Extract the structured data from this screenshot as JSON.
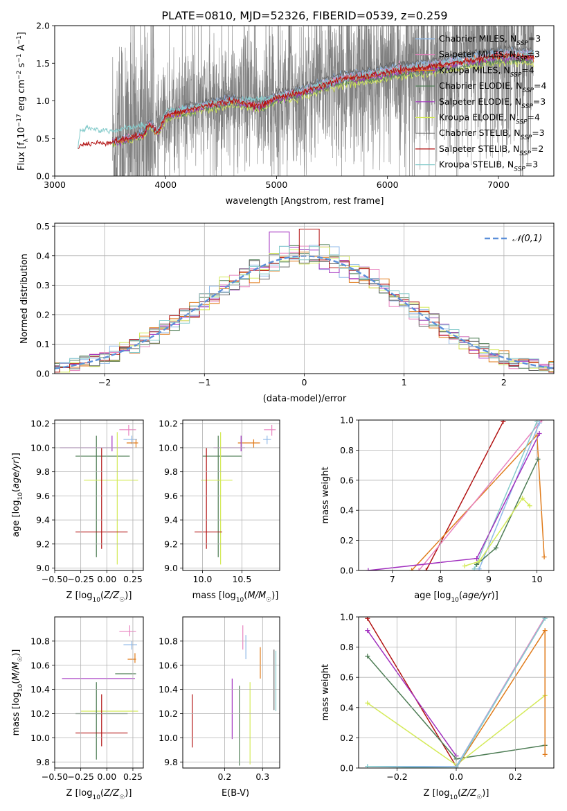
{
  "figure": {
    "title": "PLATE=0810, MJD=52326, FIBERID=0539, z=0.259"
  },
  "colors": {
    "chab_miles": "#8fb9e8",
    "salp_miles": "#e882bf",
    "krou_miles": "#e07b1a",
    "chab_elodie": "#4e7d55",
    "salp_elodie": "#a12fbf",
    "krou_elodie": "#d4ea57",
    "chab_stelib": "#666666",
    "salp_stelib": "#b21212",
    "krou_stelib": "#87cccc",
    "normal": "#5b8fd9",
    "grid": "#b0b0b0"
  },
  "chart_data": [
    {
      "id": "spectrum",
      "type": "line",
      "xlabel": "wavelength [Angstrom, rest frame]",
      "ylabel": "Flux [f_λ 10^-17 erg cm^-2 s^-1 A^-1]",
      "xlim": [
        3000,
        7500
      ],
      "ylim": [
        0.0,
        2.0
      ],
      "xticks": [
        3000,
        4000,
        5000,
        6000,
        7000
      ],
      "yticks": [
        0.0,
        0.5,
        1.0,
        1.5,
        2.0
      ],
      "grid": false,
      "legend_position": "top-right",
      "series": [
        {
          "key": "chab_miles",
          "name": "Chabrier MILES, N_SSP=3"
        },
        {
          "key": "salp_miles",
          "name": "Salpeter MILES, N_SSP=3"
        },
        {
          "key": "krou_miles",
          "name": "Kroupa MILES, N_SSP=4"
        },
        {
          "key": "chab_elodie",
          "name": "Chabrier ELODIE, N_SSP=4"
        },
        {
          "key": "salp_elodie",
          "name": "Salpeter ELODIE, N_SSP=3"
        },
        {
          "key": "krou_elodie",
          "name": "Kroupa ELODIE, N_SSP=4"
        },
        {
          "key": "chab_stelib",
          "name": "Chabrier STELIB, N_SSP=3"
        },
        {
          "key": "salp_stelib",
          "name": "Salpeter STELIB, N_SSP=2"
        },
        {
          "key": "krou_stelib",
          "name": "Kroupa STELIB, N_SSP=3"
        }
      ],
      "model_curve": [
        [
          3210,
          0.4
        ],
        [
          3300,
          0.43
        ],
        [
          3500,
          0.45
        ],
        [
          3600,
          0.48
        ],
        [
          3800,
          0.55
        ],
        [
          3850,
          0.7
        ],
        [
          3930,
          0.58
        ],
        [
          4000,
          0.8
        ],
        [
          4200,
          0.88
        ],
        [
          4400,
          0.95
        ],
        [
          4600,
          1.0
        ],
        [
          4860,
          0.93
        ],
        [
          5000,
          1.05
        ],
        [
          5200,
          1.1
        ],
        [
          5400,
          1.2
        ],
        [
          5600,
          1.3
        ],
        [
          5800,
          1.32
        ],
        [
          6000,
          1.38
        ],
        [
          6200,
          1.42
        ],
        [
          6500,
          1.48
        ],
        [
          6800,
          1.55
        ],
        [
          7000,
          1.6
        ],
        [
          7200,
          1.6
        ],
        [
          7320,
          1.58
        ]
      ],
      "model_curve_blue": [
        [
          3210,
          0.35
        ],
        [
          3230,
          0.6
        ],
        [
          3300,
          0.63
        ],
        [
          3500,
          0.6
        ],
        [
          3600,
          0.62
        ],
        [
          3800,
          0.68
        ],
        [
          3930,
          0.6
        ],
        [
          4000,
          0.85
        ],
        [
          4500,
          0.98
        ],
        [
          5000,
          1.05
        ],
        [
          5500,
          1.25
        ],
        [
          6000,
          1.4
        ],
        [
          6500,
          1.5
        ],
        [
          7000,
          1.6
        ],
        [
          7320,
          1.62
        ]
      ],
      "data_range": [
        3520,
        7320
      ],
      "data_level_note": ""
    },
    {
      "id": "residuals",
      "type": "step",
      "xlabel": "(data-model)/error",
      "ylabel": "Normed distribution",
      "xlim": [
        -2.5,
        2.5
      ],
      "ylim": [
        0.0,
        0.51
      ],
      "xticks": [
        -2,
        -1,
        0,
        1,
        2
      ],
      "yticks": [
        0.0,
        0.1,
        0.2,
        0.3,
        0.4,
        0.5
      ],
      "grid": true,
      "legend_position": "top-right",
      "legend": "𝒩(0,1)",
      "bin_width": 0.1
    },
    {
      "id": "age_vs_Z",
      "type": "errorbar",
      "xlabel": "Z [log10(Z/Z☉)]",
      "ylabel": "age  [log10(age/yr)]",
      "xlim": [
        -0.5,
        0.35
      ],
      "ylim": [
        8.98,
        10.23
      ],
      "xticks": [
        -0.5,
        -0.25,
        0.0,
        0.25
      ],
      "yticks": [
        9.0,
        9.2,
        9.4,
        9.6,
        9.8,
        10.0,
        10.2
      ],
      "points": [
        {
          "key": "salp_miles",
          "x": 0.21,
          "xerr": [
            0.09,
            0.07
          ],
          "y": 10.15,
          "yerr": [
            0.05,
            0.04
          ]
        },
        {
          "key": "chab_miles",
          "x": 0.24,
          "xerr": [
            0.08,
            0.05
          ],
          "y": 10.07,
          "yerr": [
            0.04,
            0.03
          ]
        },
        {
          "key": "krou_miles",
          "x": 0.28,
          "xerr": [
            0.09,
            0.02
          ],
          "y": 10.04,
          "yerr": [
            0.04,
            0.03
          ]
        },
        {
          "key": "salp_elodie",
          "x": 0.05,
          "xerr": [
            0.5,
            0.2
          ],
          "y": 10.0,
          "yerr": [
            0.03,
            0.1
          ]
        },
        {
          "key": "chab_elodie",
          "x": -0.1,
          "xerr": [
            0.2,
            0.32
          ],
          "y": 9.93,
          "yerr": [
            0.84,
            0.17
          ]
        },
        {
          "key": "krou_elodie",
          "x": 0.1,
          "xerr": [
            0.32,
            0.2
          ],
          "y": 9.73,
          "yerr": [
            0.7,
            0.4
          ]
        },
        {
          "key": "salp_stelib",
          "x": -0.05,
          "xerr": [
            0.25,
            0.25
          ],
          "y": 9.3,
          "yerr": [
            0.14,
            0.7
          ]
        }
      ]
    },
    {
      "id": "age_vs_mass",
      "type": "errorbar",
      "xlabel": "mass [log10(M/M☉)]",
      "ylabel": "",
      "xlim": [
        9.75,
        10.98
      ],
      "ylim": [
        8.98,
        10.23
      ],
      "xticks": [
        10.0,
        10.5
      ],
      "yticks": [
        9.0,
        9.2,
        9.4,
        9.6,
        9.8,
        10.0,
        10.2
      ],
      "points": [
        {
          "key": "salp_miles",
          "x": 10.88,
          "xerr": [
            0.1,
            0.05
          ],
          "y": 10.15,
          "yerr": [
            0.05,
            0.04
          ]
        },
        {
          "key": "chab_miles",
          "x": 10.82,
          "xerr": [
            0.05,
            0.05
          ],
          "y": 10.07,
          "yerr": [
            0.04,
            0.03
          ]
        },
        {
          "key": "krou_miles",
          "x": 10.65,
          "xerr": [
            0.2,
            0.08
          ],
          "y": 10.04,
          "yerr": [
            0.04,
            0.03
          ]
        },
        {
          "key": "salp_elodie",
          "x": 10.49,
          "xerr": [
            0.35,
            0.05
          ],
          "y": 10.0,
          "yerr": [
            0.03,
            0.1
          ]
        },
        {
          "key": "chab_elodie",
          "x": 10.2,
          "xerr": [
            0.2,
            0.3
          ],
          "y": 9.93,
          "yerr": [
            0.84,
            0.17
          ]
        },
        {
          "key": "krou_elodie",
          "x": 10.23,
          "xerr": [
            0.25,
            0.15
          ],
          "y": 9.73,
          "yerr": [
            0.7,
            0.4
          ]
        },
        {
          "key": "salp_stelib",
          "x": 10.05,
          "xerr": [
            0.15,
            0.2
          ],
          "y": 9.3,
          "yerr": [
            0.14,
            0.7
          ]
        }
      ]
    },
    {
      "id": "mass_weight_vs_age",
      "type": "line",
      "xlabel": "age  [log10(age/yr)]",
      "ylabel": "mass weight",
      "xlim": [
        6.3,
        10.35
      ],
      "ylim": [
        0.0,
        1.0
      ],
      "xticks": [
        7,
        8,
        9,
        10
      ],
      "yticks": [
        0.0,
        0.2,
        0.4,
        0.6,
        0.8,
        1.0
      ],
      "series": [
        {
          "key": "salp_stelib",
          "x": [
            7.7,
            9.3
          ],
          "y": [
            0.0,
            0.99
          ]
        },
        {
          "key": "krou_miles",
          "x": [
            7.4,
            10.0,
            10.15
          ],
          "y": [
            0.0,
            0.9,
            0.09
          ]
        },
        {
          "key": "salp_miles",
          "x": [
            7.55,
            10.1
          ],
          "y": [
            0.0,
            1.0
          ]
        },
        {
          "key": "chab_miles",
          "x": [
            8.8,
            10.05
          ],
          "y": [
            0.01,
            0.98
          ]
        },
        {
          "key": "krou_stelib",
          "x": [
            8.7,
            10.0
          ],
          "y": [
            0.01,
            0.99
          ]
        },
        {
          "key": "salp_elodie",
          "x": [
            6.5,
            8.75,
            10.05
          ],
          "y": [
            0.0,
            0.08,
            0.91
          ]
        },
        {
          "key": "chab_elodie",
          "x": [
            8.75,
            9.15,
            10.02
          ],
          "y": [
            0.04,
            0.15,
            0.74
          ]
        },
        {
          "key": "krou_elodie",
          "x": [
            8.5,
            8.8,
            9.7,
            9.85
          ],
          "y": [
            0.03,
            0.06,
            0.48,
            0.43
          ]
        }
      ]
    },
    {
      "id": "mass_vs_Z",
      "type": "errorbar",
      "xlabel": "Z [log10(Z/Z☉)]",
      "ylabel": "mass [log10(M/M☉)]",
      "xlim": [
        -0.5,
        0.35
      ],
      "ylim": [
        9.75,
        11.0
      ],
      "xticks": [
        -0.5,
        -0.25,
        0.0,
        0.25
      ],
      "yticks": [
        9.8,
        10.0,
        10.2,
        10.4,
        10.6,
        10.8
      ],
      "points": [
        {
          "key": "salp_miles",
          "x": 0.22,
          "xerr": [
            0.1,
            0.06
          ],
          "y": 10.88,
          "yerr": [
            0.04,
            0.05
          ]
        },
        {
          "key": "chab_miles",
          "x": 0.24,
          "xerr": [
            0.08,
            0.05
          ],
          "y": 10.77,
          "yerr": [
            0.04,
            0.03
          ]
        },
        {
          "key": "krou_miles",
          "x": 0.27,
          "xerr": [
            0.07,
            0.01
          ],
          "y": 10.65,
          "yerr": [
            0.03,
            0.05
          ]
        },
        {
          "key": "chab_elodie",
          "x": 0.18,
          "xerr": [
            0.1,
            0.1
          ],
          "y": 10.53,
          "yerr": [
            0.0,
            0.0
          ]
        },
        {
          "key": "salp_elodie",
          "x": 0.05,
          "xerr": [
            0.48,
            0.22
          ],
          "y": 10.49,
          "yerr": [
            0.0,
            0.0
          ]
        },
        {
          "key": "krou_elodie",
          "x": 0.1,
          "xerr": [
            0.35,
            0.2
          ],
          "y": 10.22,
          "yerr": [
            0.0,
            0.0
          ]
        },
        {
          "key": "chab_elodie",
          "x": -0.1,
          "xerr": [
            0.2,
            0.3
          ],
          "y": 10.2,
          "yerr": [
            0.38,
            0.26
          ]
        },
        {
          "key": "salp_stelib",
          "x": -0.05,
          "xerr": [
            0.25,
            0.25
          ],
          "y": 10.04,
          "yerr": [
            0.11,
            0.32
          ]
        }
      ]
    },
    {
      "id": "mass_vs_ebv",
      "type": "errorbar",
      "xlabel": "E(B-V)",
      "ylabel": "",
      "xlim": [
        0.09,
        0.345
      ],
      "ylim": [
        9.75,
        11.0
      ],
      "xticks": [
        0.2,
        0.3
      ],
      "yticks": [
        9.8,
        10.0,
        10.2,
        10.4,
        10.6,
        10.8
      ],
      "points": [
        {
          "key": "salp_stelib",
          "x": 0.115,
          "y": 10.14,
          "yerr": [
            0.22,
            0.22
          ]
        },
        {
          "key": "salp_elodie",
          "x": 0.22,
          "y": 10.24,
          "yerr": [
            0.25,
            0.25
          ]
        },
        {
          "key": "chab_elodie",
          "x": 0.239,
          "y": 10.1,
          "yerr": [
            0.33,
            0.33
          ]
        },
        {
          "key": "salp_miles",
          "x": 0.248,
          "y": 10.83,
          "yerr": [
            0.1,
            0.1
          ]
        },
        {
          "key": "chab_miles",
          "x": 0.256,
          "y": 10.75,
          "yerr": [
            0.1,
            0.1
          ]
        },
        {
          "key": "krou_elodie",
          "x": 0.267,
          "y": 10.12,
          "yerr": [
            0.34,
            0.34
          ]
        },
        {
          "key": "krou_miles",
          "x": 0.294,
          "y": 10.62,
          "yerr": [
            0.13,
            0.13
          ]
        },
        {
          "key": "chab_stelib",
          "x": 0.33,
          "y": 10.48,
          "yerr": [
            0.25,
            0.25
          ]
        },
        {
          "key": "krou_stelib",
          "x": 0.335,
          "y": 10.47,
          "yerr": [
            0.25,
            0.25
          ]
        }
      ]
    },
    {
      "id": "mass_weight_vs_Z",
      "type": "line",
      "xlabel": "Z [log10(Z/Z☉)]",
      "ylabel": "mass weight",
      "xlim": [
        -0.33,
        0.33
      ],
      "ylim": [
        0.0,
        1.0
      ],
      "xticks": [
        -0.2,
        0.0,
        0.2
      ],
      "yticks": [
        0.0,
        0.2,
        0.4,
        0.6,
        0.8,
        1.0
      ],
      "series": [
        {
          "key": "salp_stelib",
          "x": [
            -0.3,
            0.0
          ],
          "y": [
            0.99,
            0.01
          ]
        },
        {
          "key": "salp_elodie",
          "x": [
            -0.3,
            0.0
          ],
          "y": [
            0.91,
            0.08
          ]
        },
        {
          "key": "chab_elodie",
          "x": [
            -0.3,
            0.0,
            0.3
          ],
          "y": [
            0.74,
            0.06,
            0.15
          ]
        },
        {
          "key": "krou_elodie",
          "x": [
            -0.3,
            0.0,
            0.3
          ],
          "y": [
            0.43,
            0.02,
            0.48
          ]
        },
        {
          "key": "krou_miles",
          "x": [
            0.0,
            0.3,
            0.3
          ],
          "y": [
            0.0,
            0.91,
            0.09
          ]
        },
        {
          "key": "salp_miles",
          "x": [
            0.0,
            0.3
          ],
          "y": [
            0.01,
            1.0
          ]
        },
        {
          "key": "chab_miles",
          "x": [
            -0.3,
            0.0,
            0.3
          ],
          "y": [
            0.01,
            0.01,
            0.99
          ]
        },
        {
          "key": "krou_stelib",
          "x": [
            -0.3,
            0.0,
            0.3
          ],
          "y": [
            0.01,
            0.0,
            0.99
          ]
        }
      ]
    }
  ]
}
